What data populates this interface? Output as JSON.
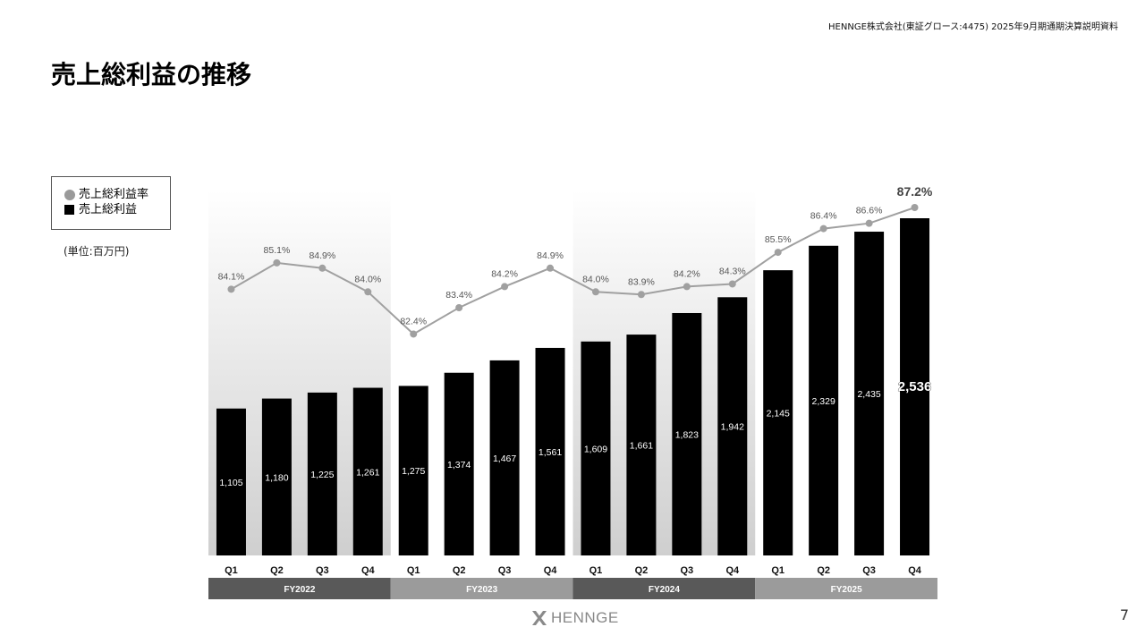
{
  "header": {
    "note": "HENNGE株式会社(東証グロース:4475) 2025年9月期通期決算説明資料",
    "title": "売上総利益の推移"
  },
  "legend": {
    "rate_label": "売上総利益率",
    "profit_label": "売上総利益"
  },
  "unit": "(単位:百万円)",
  "footer": {
    "logo": "HENNGE",
    "page_number": "7"
  },
  "colors": {
    "bar": "#000000",
    "line": "#a0a0a0",
    "band_dark": "#595959",
    "band_light": "#9b9b9b"
  },
  "chart_data": {
    "type": "bar",
    "categories": [
      "Q1",
      "Q2",
      "Q3",
      "Q4",
      "Q1",
      "Q2",
      "Q3",
      "Q4",
      "Q1",
      "Q2",
      "Q3",
      "Q4",
      "Q1",
      "Q2",
      "Q3",
      "Q4"
    ],
    "groups": [
      {
        "label": "FY2022",
        "count": 4
      },
      {
        "label": "FY2023",
        "count": 4
      },
      {
        "label": "FY2024",
        "count": 4
      },
      {
        "label": "FY2025",
        "count": 4
      }
    ],
    "series": [
      {
        "name": "売上総利益",
        "type": "bar",
        "values": [
          1105,
          1180,
          1225,
          1261,
          1275,
          1374,
          1467,
          1561,
          1609,
          1661,
          1823,
          1942,
          2145,
          2329,
          2435,
          2536
        ],
        "labels": [
          "1,105",
          "1,180",
          "1,225",
          "1,261",
          "1,275",
          "1,374",
          "1,467",
          "1,561",
          "1,609",
          "1,661",
          "1,823",
          "1,942",
          "2,145",
          "2,329",
          "2,435",
          "2,536"
        ]
      },
      {
        "name": "売上総利益率",
        "type": "line",
        "values": [
          84.1,
          85.1,
          84.9,
          84.0,
          82.4,
          83.4,
          84.2,
          84.9,
          84.0,
          83.9,
          84.2,
          84.3,
          85.5,
          86.4,
          86.6,
          87.2
        ],
        "labels": [
          "84.1%",
          "85.1%",
          "84.9%",
          "84.0%",
          "82.4%",
          "83.4%",
          "84.2%",
          "84.9%",
          "84.0%",
          "83.9%",
          "84.2%",
          "84.3%",
          "85.5%",
          "86.4%",
          "86.6%",
          "87.2%"
        ]
      }
    ],
    "ylim": [
      0,
      2536
    ],
    "rate_ylim": [
      74,
      87.2
    ],
    "highlight_last": true,
    "grid": false
  }
}
